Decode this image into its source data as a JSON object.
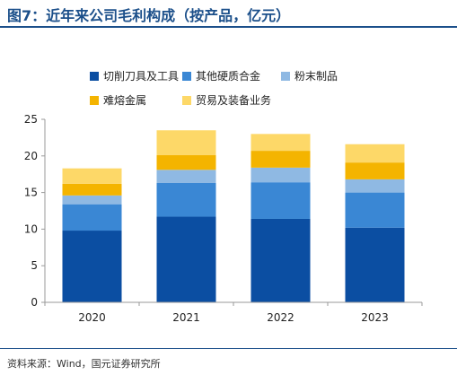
{
  "title": "图7：近年来公司毛利构成（按产品，亿元）",
  "source": "资料来源：Wind，国元证券研究所",
  "chart_data": {
    "type": "bar",
    "stacked": true,
    "categories": [
      "2020",
      "2021",
      "2022",
      "2023"
    ],
    "series": [
      {
        "name": "切削刀具及工具",
        "color": "#0b4ea2",
        "values": [
          9.8,
          11.7,
          11.4,
          10.2
        ]
      },
      {
        "name": "其他硬质合金",
        "color": "#3a87d4",
        "values": [
          3.6,
          4.6,
          5.0,
          4.8
        ]
      },
      {
        "name": "粉末制品",
        "color": "#8fb9e3",
        "values": [
          1.2,
          1.8,
          2.0,
          1.8
        ]
      },
      {
        "name": "难熔金属",
        "color": "#f4b400",
        "values": [
          1.6,
          2.0,
          2.3,
          2.3
        ]
      },
      {
        "name": "贸易及装备业务",
        "color": "#fdd868",
        "values": [
          2.1,
          3.4,
          2.3,
          2.5
        ]
      }
    ],
    "ylim": [
      0,
      25
    ],
    "yticks": [
      0,
      5,
      10,
      15,
      20,
      25
    ],
    "grid": false,
    "legend_position": "top"
  }
}
